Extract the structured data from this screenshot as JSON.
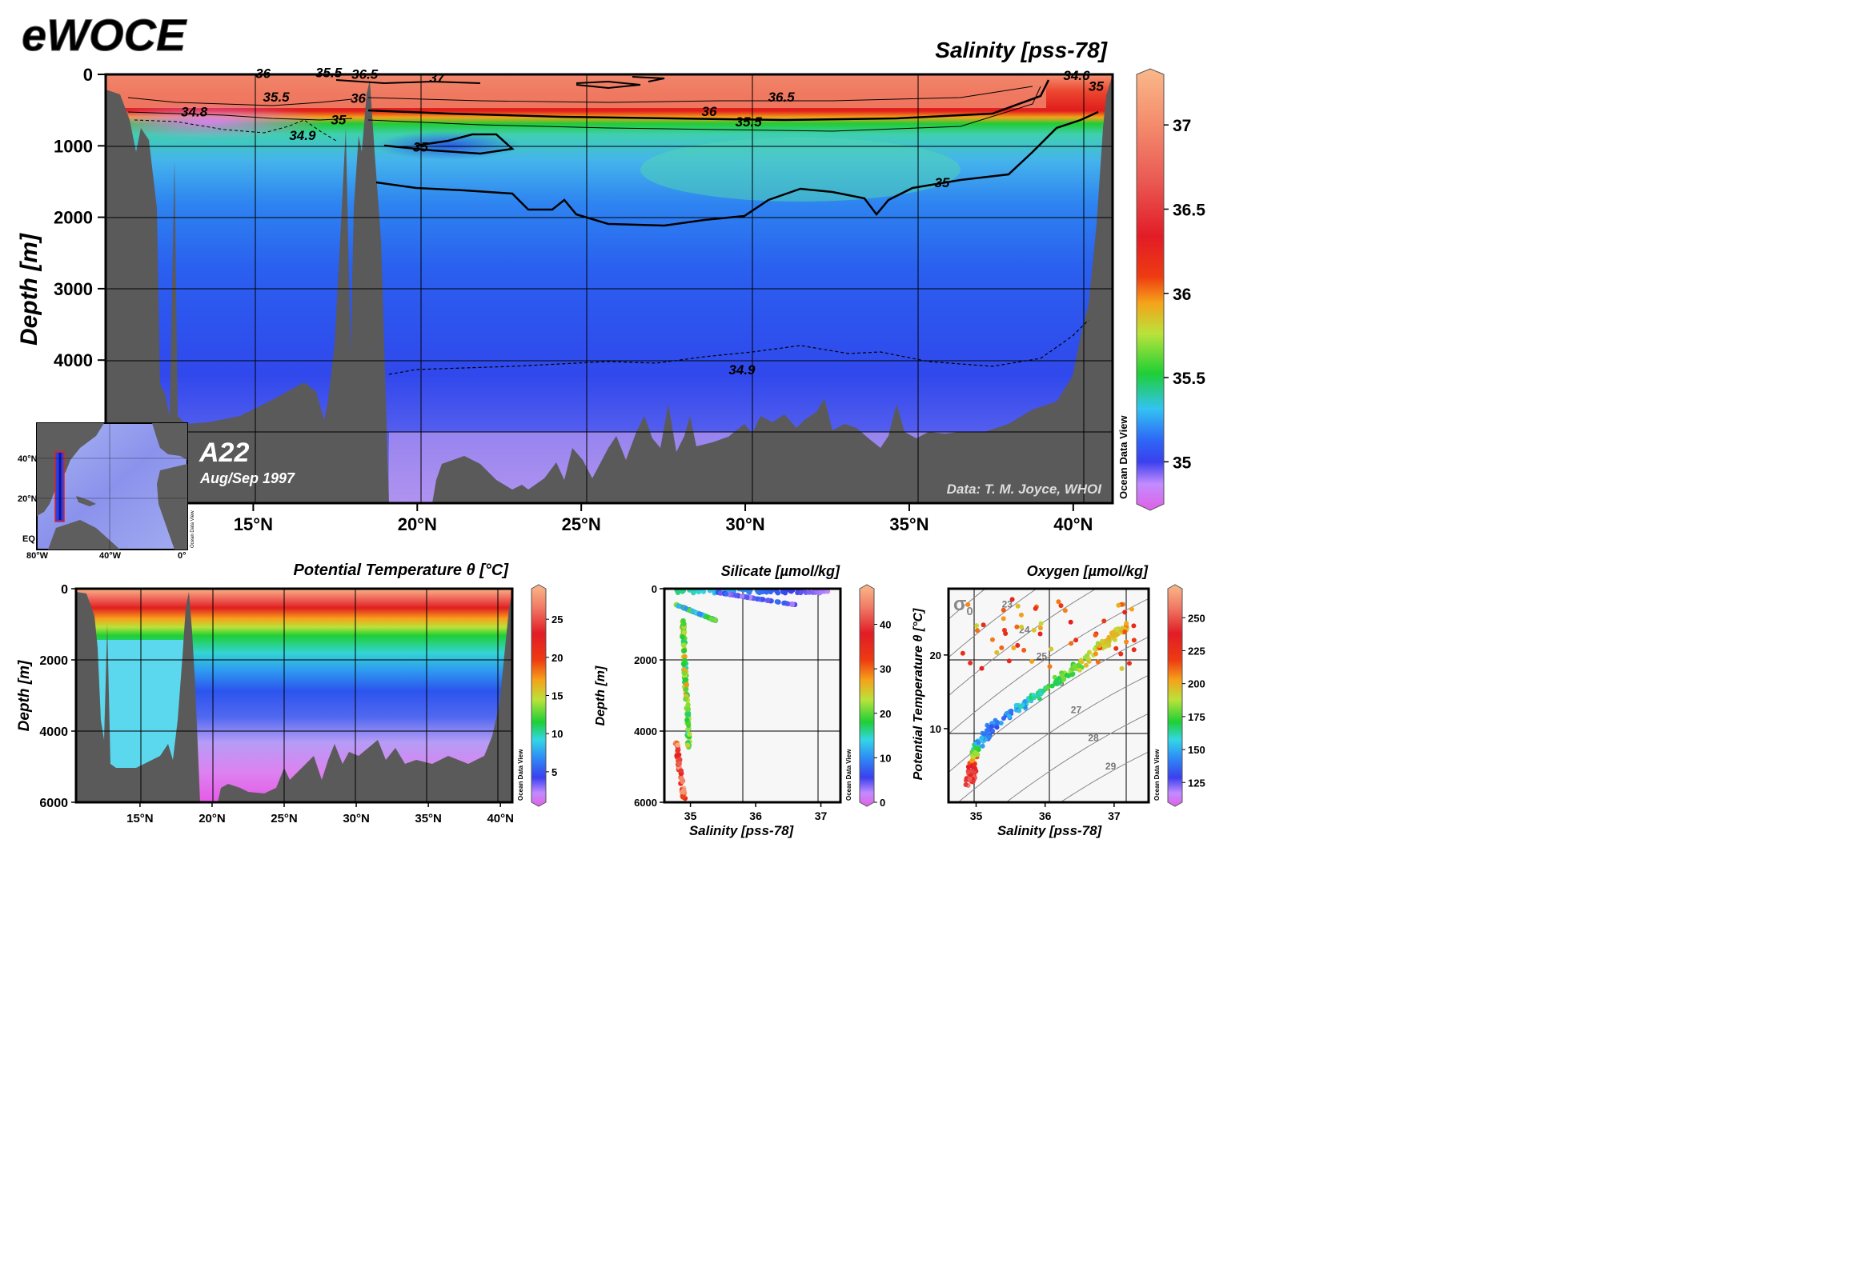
{
  "header": {
    "logo": "eWOCE"
  },
  "section_main": {
    "title": "Salinity [pss-78]",
    "ylabel": "Depth [m]",
    "cruise": "A22",
    "date": "Aug/Sep 1997",
    "credit": "Data: T. M. Joyce, WHOI",
    "odv": "Ocean Data View"
  },
  "inset_map": {
    "lat_labels": [
      "40°N",
      "20°N",
      "EQ"
    ],
    "lon_labels": [
      "80°W",
      "40°W",
      "0°"
    ],
    "odv": "Ocean Data View"
  },
  "panel_temp": {
    "title": "Potential Temperature θ [°C]",
    "ylabel": "Depth [m]",
    "odv": "Ocean Data View"
  },
  "panel_silicate": {
    "title": "Silicate [µmol/kg]",
    "xlabel": "Salinity [pss-78]",
    "ylabel": "Depth [m]",
    "odv": "Ocean Data View"
  },
  "panel_oxygen": {
    "title": "Oxygen [µmol/kg]",
    "xlabel": "Salinity [pss-78]",
    "ylabel": "Potential Temperature θ [°C]",
    "sigma": "σ",
    "sigma_sub": "0",
    "odv": "Ocean Data View"
  },
  "chart_data": [
    {
      "type": "heatmap",
      "name": "salinity-section",
      "title": "Salinity [pss-78]",
      "xlabel": "",
      "ylabel": "Depth [m]",
      "xlim": [
        10.5,
        41.2
      ],
      "ylim": [
        6000,
        0
      ],
      "x_ticks": [
        15,
        20,
        25,
        30,
        35,
        40
      ],
      "x_tick_labels": [
        "15°N",
        "20°N",
        "25°N",
        "30°N",
        "35°N",
        "40°N"
      ],
      "y_ticks": [
        0,
        1000,
        2000,
        3000,
        4000
      ],
      "y_tick_labels": [
        "0",
        "1000",
        "2000",
        "3000",
        "4000"
      ],
      "colorbar": {
        "ticks": [
          35,
          35.5,
          36,
          36.5,
          37
        ],
        "tick_labels": [
          "35",
          "35.5",
          "36",
          "36.5",
          "37"
        ],
        "range": [
          34.75,
          37.3
        ]
      },
      "contour_labels": [
        {
          "value": "36",
          "lat": 15.3,
          "depth": 50
        },
        {
          "value": "35.5",
          "lat": 17.3,
          "depth": 40
        },
        {
          "value": "36.5",
          "lat": 18.4,
          "depth": 60
        },
        {
          "value": "37",
          "lat": 20.6,
          "depth": 110
        },
        {
          "value": "35.5",
          "lat": 15.7,
          "depth": 380
        },
        {
          "value": "36",
          "lat": 18.2,
          "depth": 400
        },
        {
          "value": "34.8",
          "lat": 13.2,
          "depth": 590
        },
        {
          "value": "35",
          "lat": 17.6,
          "depth": 700
        },
        {
          "value": "34.9",
          "lat": 16.5,
          "depth": 920
        },
        {
          "value": "35",
          "lat": 20.1,
          "depth": 1080
        },
        {
          "value": "36.5",
          "lat": 31.1,
          "depth": 380
        },
        {
          "value": "36",
          "lat": 28.9,
          "depth": 580
        },
        {
          "value": "35.5",
          "lat": 30.1,
          "depth": 730
        },
        {
          "value": "35",
          "lat": 36.0,
          "depth": 1580
        },
        {
          "value": "34.9",
          "lat": 29.9,
          "depth": 4200
        },
        {
          "value": "34.6",
          "lat": 40.1,
          "depth": 80
        },
        {
          "value": "35",
          "lat": 40.7,
          "depth": 230
        }
      ]
    },
    {
      "type": "heatmap",
      "name": "potential-temperature-section",
      "title": "Potential Temperature θ [°C]",
      "xlabel": "",
      "ylabel": "Depth [m]",
      "xlim": [
        10.5,
        41.2
      ],
      "ylim": [
        6000,
        0
      ],
      "x_ticks": [
        15,
        20,
        25,
        30,
        35,
        40
      ],
      "x_tick_labels": [
        "15°N",
        "20°N",
        "25°N",
        "30°N",
        "35°N",
        "40°N"
      ],
      "y_ticks": [
        0,
        2000,
        4000,
        6000
      ],
      "y_tick_labels": [
        "0",
        "2000",
        "4000",
        "6000"
      ],
      "colorbar": {
        "ticks": [
          5,
          10,
          15,
          20,
          25
        ],
        "tick_labels": [
          "5",
          "10",
          "15",
          "20",
          "25"
        ],
        "range": [
          1,
          29
        ]
      }
    },
    {
      "type": "scatter",
      "name": "salinity-depth-silicate",
      "title": "Silicate [µmol/kg]",
      "xlabel": "Salinity [pss-78]",
      "ylabel": "Depth [m]",
      "xlim": [
        34.6,
        37.3
      ],
      "ylim": [
        6000,
        0
      ],
      "x_ticks": [
        35,
        36,
        37
      ],
      "x_tick_labels": [
        "35",
        "36",
        "37"
      ],
      "y_ticks": [
        0,
        2000,
        4000,
        6000
      ],
      "y_tick_labels": [
        "0",
        "2000",
        "4000",
        "6000"
      ],
      "colorbar": {
        "ticks": [
          0,
          10,
          20,
          30,
          40
        ],
        "tick_labels": [
          "0",
          "10",
          "20",
          "30",
          "40"
        ],
        "range": [
          0,
          48
        ]
      },
      "groups": [
        {
          "note": "surface",
          "s_range": [
            34.8,
            37.2
          ],
          "d_range": [
            0,
            120
          ],
          "c_range": [
            1,
            4
          ],
          "n": 90
        },
        {
          "note": "upper thermocline",
          "s_range": [
            35.4,
            36.6
          ],
          "d_range": [
            100,
            450
          ],
          "c_range": [
            3,
            9
          ],
          "n": 70
        },
        {
          "note": "AAIW",
          "s_range": [
            34.78,
            35.4
          ],
          "d_range": [
            450,
            900
          ],
          "c_range": [
            8,
            22
          ],
          "n": 70
        },
        {
          "note": "NADW",
          "s_range": [
            34.88,
            34.98
          ],
          "d_range": [
            900,
            4500
          ],
          "c_range": [
            14,
            28
          ],
          "n": 110
        },
        {
          "note": "bottom",
          "s_range": [
            34.78,
            34.9
          ],
          "d_range": [
            4300,
            5900
          ],
          "c_range": [
            30,
            48
          ],
          "n": 60
        }
      ]
    },
    {
      "type": "scatter",
      "name": "ts-diagram-oxygen",
      "title": "Oxygen [µmol/kg]",
      "xlabel": "Salinity [pss-78]",
      "ylabel": "Potential Temperature θ [°C]",
      "xlim": [
        34.6,
        37.5
      ],
      "ylim": [
        0,
        29
      ],
      "x_ticks": [
        35,
        36,
        37
      ],
      "x_tick_labels": [
        "35",
        "36",
        "37"
      ],
      "y_ticks": [
        10,
        20
      ],
      "y_tick_labels": [
        "10",
        "20"
      ],
      "colorbar": {
        "ticks": [
          125,
          150,
          175,
          200,
          225,
          250
        ],
        "tick_labels": [
          "125",
          "150",
          "175",
          "200",
          "225",
          "250"
        ],
        "range": [
          110,
          272
        ]
      },
      "isopycnal_labels": [
        "22",
        "23",
        "24",
        "25",
        "26",
        "27",
        "28",
        "29"
      ],
      "trend": [
        {
          "s": 34.9,
          "t": 2.5,
          "o": 248
        },
        {
          "s": 34.93,
          "t": 4.0,
          "o": 245
        },
        {
          "s": 34.97,
          "t": 6.0,
          "o": 200
        },
        {
          "s": 35.05,
          "t": 8.0,
          "o": 150
        },
        {
          "s": 35.2,
          "t": 10.0,
          "o": 140
        },
        {
          "s": 35.5,
          "t": 12.0,
          "o": 145
        },
        {
          "s": 35.8,
          "t": 14.0,
          "o": 160
        },
        {
          "s": 36.1,
          "t": 16.0,
          "o": 170
        },
        {
          "s": 36.4,
          "t": 18.0,
          "o": 180
        },
        {
          "s": 36.7,
          "t": 20.5,
          "o": 190
        },
        {
          "s": 37.0,
          "t": 22.5,
          "o": 195
        },
        {
          "s": 37.2,
          "t": 24.0,
          "o": 200
        }
      ]
    }
  ]
}
